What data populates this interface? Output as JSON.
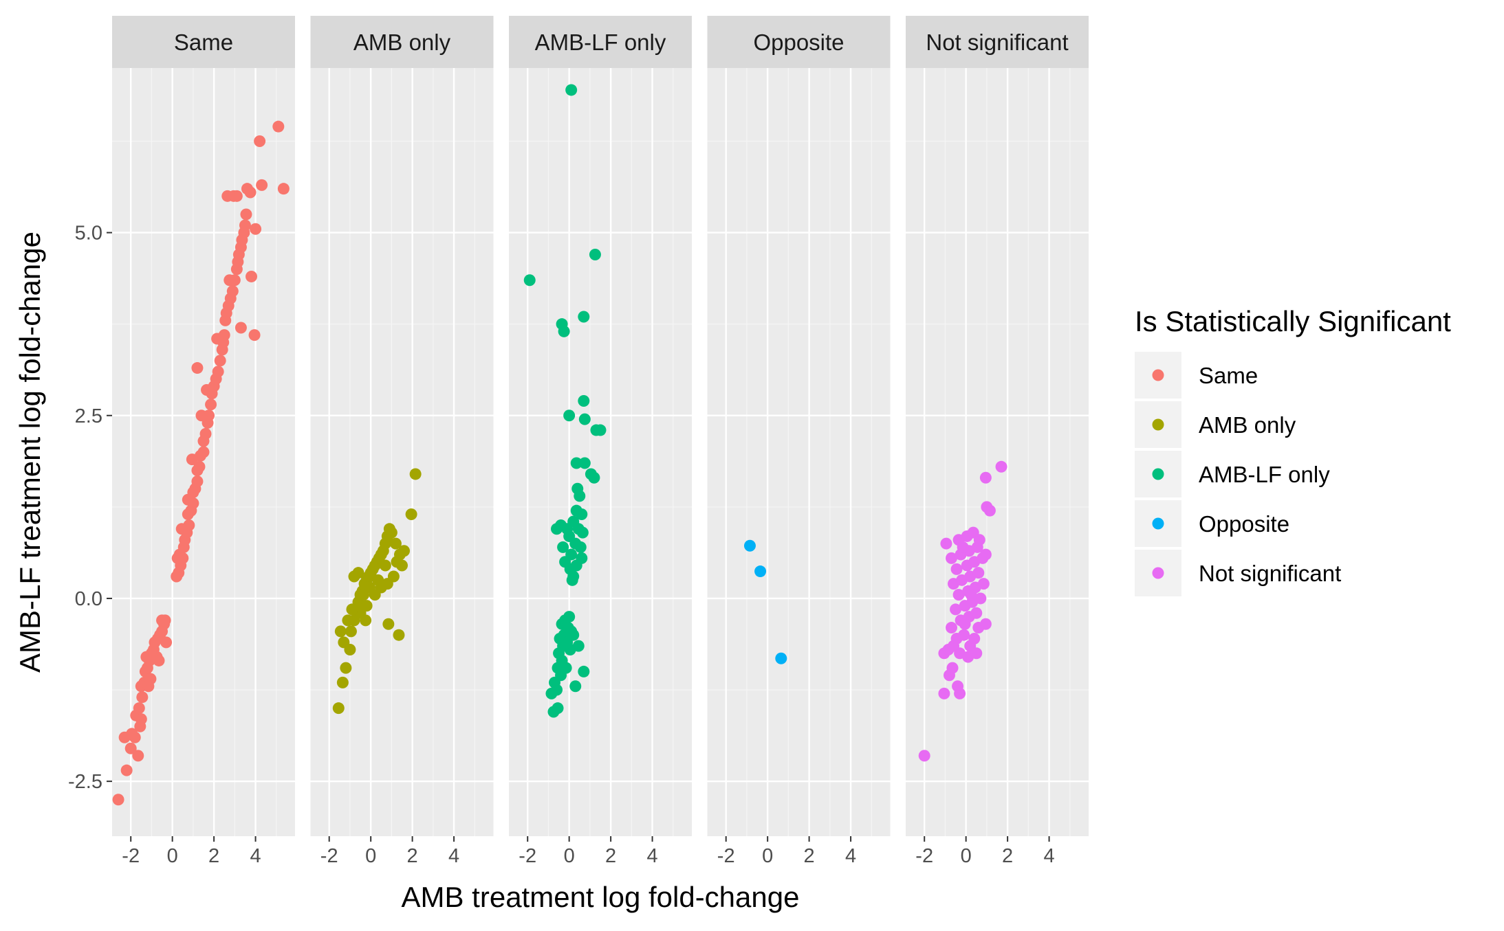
{
  "chart_data": {
    "type": "scatter",
    "facet_by": "Is Statistically Significant",
    "xlabel": "AMB treatment log fold-change",
    "ylabel": "AMB-LF treatment log fold-change",
    "xlim": [
      -2.9,
      5.9
    ],
    "ylim": [
      -3.25,
      7.25
    ],
    "x_ticks": [
      -2,
      0,
      2,
      4
    ],
    "x_tick_labels": [
      "-2",
      "0",
      "2",
      "4"
    ],
    "y_ticks": [
      -2.5,
      0.0,
      2.5,
      5.0
    ],
    "y_tick_labels": [
      "-2.5",
      "0.0",
      "2.5",
      "5.0"
    ],
    "grid": true,
    "legend": {
      "title": "Is Statistically Significant",
      "position": "right",
      "entries": [
        "Same",
        "AMB only",
        "AMB-LF only",
        "Opposite",
        "Not significant"
      ]
    },
    "panels": [
      {
        "name": "Same",
        "color": "#F8766D",
        "points": [
          [
            -2.6,
            -2.75
          ],
          [
            -2.2,
            -2.35
          ],
          [
            -2.3,
            -1.9
          ],
          [
            -2.0,
            -2.05
          ],
          [
            -1.65,
            -2.15
          ],
          [
            -1.95,
            -1.85
          ],
          [
            -1.8,
            -1.9
          ],
          [
            -1.75,
            -1.6
          ],
          [
            -1.5,
            -1.65
          ],
          [
            -1.6,
            -1.5
          ],
          [
            -1.45,
            -1.35
          ],
          [
            -1.5,
            -1.2
          ],
          [
            -1.35,
            -1.15
          ],
          [
            -1.3,
            -1.0
          ],
          [
            -1.2,
            -0.95
          ],
          [
            -1.1,
            -0.85
          ],
          [
            -1.25,
            -0.8
          ],
          [
            -1.0,
            -0.75
          ],
          [
            -0.9,
            -0.7
          ],
          [
            -0.85,
            -0.6
          ],
          [
            -0.7,
            -0.55
          ],
          [
            -0.6,
            -0.5
          ],
          [
            -0.5,
            -0.45
          ],
          [
            -0.4,
            -0.35
          ],
          [
            -0.35,
            -0.3
          ],
          [
            -0.5,
            -0.3
          ],
          [
            -0.3,
            -0.6
          ],
          [
            -0.75,
            -0.8
          ],
          [
            -1.05,
            -1.1
          ],
          [
            -1.55,
            -1.75
          ],
          [
            -1.15,
            -1.2
          ],
          [
            -0.65,
            -0.85
          ],
          [
            0.2,
            0.3
          ],
          [
            0.3,
            0.35
          ],
          [
            0.4,
            0.45
          ],
          [
            0.35,
            0.6
          ],
          [
            0.5,
            0.55
          ],
          [
            0.55,
            0.7
          ],
          [
            0.6,
            0.8
          ],
          [
            0.7,
            0.9
          ],
          [
            0.8,
            1.0
          ],
          [
            0.75,
            1.15
          ],
          [
            0.9,
            1.2
          ],
          [
            1.0,
            1.3
          ],
          [
            1.0,
            1.45
          ],
          [
            1.1,
            1.5
          ],
          [
            1.2,
            1.6
          ],
          [
            1.2,
            1.75
          ],
          [
            1.3,
            1.8
          ],
          [
            1.35,
            1.95
          ],
          [
            1.5,
            2.0
          ],
          [
            1.5,
            2.15
          ],
          [
            1.6,
            2.25
          ],
          [
            1.7,
            2.4
          ],
          [
            1.75,
            2.5
          ],
          [
            1.4,
            2.5
          ],
          [
            1.85,
            2.65
          ],
          [
            1.9,
            2.8
          ],
          [
            2.0,
            2.9
          ],
          [
            2.1,
            3.0
          ],
          [
            2.2,
            3.1
          ],
          [
            2.3,
            3.25
          ],
          [
            2.4,
            3.4
          ],
          [
            2.45,
            3.5
          ],
          [
            2.5,
            3.6
          ],
          [
            2.55,
            3.8
          ],
          [
            2.6,
            3.9
          ],
          [
            2.7,
            4.0
          ],
          [
            2.8,
            4.1
          ],
          [
            2.9,
            4.2
          ],
          [
            3.0,
            4.35
          ],
          [
            3.1,
            4.5
          ],
          [
            3.15,
            4.6
          ],
          [
            3.2,
            4.7
          ],
          [
            3.3,
            4.8
          ],
          [
            3.35,
            4.9
          ],
          [
            3.45,
            5.0
          ],
          [
            3.5,
            5.1
          ],
          [
            3.55,
            5.25
          ],
          [
            4.0,
            5.05
          ],
          [
            3.1,
            5.5
          ],
          [
            2.65,
            5.5
          ],
          [
            2.95,
            5.5
          ],
          [
            3.6,
            5.6
          ],
          [
            3.75,
            5.55
          ],
          [
            4.3,
            5.65
          ],
          [
            5.35,
            5.6
          ],
          [
            4.2,
            6.25
          ],
          [
            5.1,
            6.45
          ],
          [
            3.95,
            3.6
          ],
          [
            3.3,
            3.7
          ],
          [
            3.8,
            4.4
          ],
          [
            1.2,
            3.15
          ],
          [
            0.95,
            1.9
          ],
          [
            0.75,
            1.35
          ],
          [
            0.25,
            0.55
          ],
          [
            0.45,
            0.95
          ],
          [
            1.65,
            2.85
          ],
          [
            2.15,
            3.55
          ],
          [
            2.75,
            4.35
          ]
        ]
      },
      {
        "name": "AMB only",
        "color": "#A3A500",
        "points": [
          [
            -1.55,
            -1.5
          ],
          [
            -1.35,
            -1.15
          ],
          [
            -1.2,
            -0.95
          ],
          [
            -1.3,
            -0.6
          ],
          [
            -1.45,
            -0.45
          ],
          [
            -1.0,
            -0.7
          ],
          [
            -0.95,
            -0.45
          ],
          [
            -0.8,
            -0.3
          ],
          [
            -0.7,
            -0.15
          ],
          [
            -0.6,
            -0.05
          ],
          [
            -0.5,
            0.05
          ],
          [
            -0.4,
            0.1
          ],
          [
            -0.3,
            0.2
          ],
          [
            -0.2,
            0.25
          ],
          [
            -0.1,
            0.3
          ],
          [
            0.0,
            0.35
          ],
          [
            0.1,
            0.4
          ],
          [
            0.2,
            0.45
          ],
          [
            0.3,
            0.5
          ],
          [
            0.4,
            0.55
          ],
          [
            0.5,
            0.6
          ],
          [
            0.6,
            0.65
          ],
          [
            0.7,
            0.75
          ],
          [
            0.8,
            0.85
          ],
          [
            0.9,
            0.95
          ],
          [
            1.0,
            0.9
          ],
          [
            1.2,
            0.75
          ],
          [
            1.4,
            0.6
          ],
          [
            1.5,
            0.45
          ],
          [
            1.1,
            0.3
          ],
          [
            0.8,
            0.2
          ],
          [
            0.5,
            0.15
          ],
          [
            0.2,
            0.05
          ],
          [
            -0.2,
            -0.1
          ],
          [
            -0.5,
            -0.2
          ],
          [
            -0.8,
            0.3
          ],
          [
            -0.6,
            0.35
          ],
          [
            -0.35,
            0.05
          ],
          [
            -0.9,
            -0.15
          ],
          [
            -1.1,
            -0.3
          ],
          [
            0.85,
            -0.35
          ],
          [
            1.35,
            -0.5
          ],
          [
            1.95,
            1.15
          ],
          [
            2.15,
            1.7
          ],
          [
            1.6,
            0.65
          ],
          [
            1.25,
            0.5
          ],
          [
            0.7,
            0.45
          ],
          [
            0.35,
            0.25
          ],
          [
            -0.05,
            0.15
          ],
          [
            -0.25,
            -0.3
          ]
        ]
      },
      {
        "name": "AMB-LF only",
        "color": "#00BF7D",
        "points": [
          [
            0.1,
            6.95
          ],
          [
            1.25,
            4.7
          ],
          [
            -1.9,
            4.35
          ],
          [
            0.7,
            3.85
          ],
          [
            -0.35,
            3.75
          ],
          [
            -0.25,
            3.65
          ],
          [
            0.7,
            2.7
          ],
          [
            0.0,
            2.5
          ],
          [
            0.75,
            2.45
          ],
          [
            1.3,
            2.3
          ],
          [
            1.5,
            2.3
          ],
          [
            0.35,
            1.85
          ],
          [
            0.75,
            1.85
          ],
          [
            1.05,
            1.7
          ],
          [
            1.2,
            1.65
          ],
          [
            0.4,
            1.5
          ],
          [
            0.5,
            1.4
          ],
          [
            0.35,
            1.2
          ],
          [
            0.6,
            1.15
          ],
          [
            0.2,
            1.05
          ],
          [
            -0.4,
            1.0
          ],
          [
            -0.1,
            0.95
          ],
          [
            0.45,
            0.95
          ],
          [
            0.65,
            0.9
          ],
          [
            -0.6,
            0.95
          ],
          [
            0.0,
            0.85
          ],
          [
            0.3,
            0.75
          ],
          [
            -0.3,
            0.7
          ],
          [
            0.55,
            0.7
          ],
          [
            0.1,
            0.6
          ],
          [
            -0.2,
            0.5
          ],
          [
            0.35,
            0.45
          ],
          [
            0.05,
            0.4
          ],
          [
            0.2,
            0.3
          ],
          [
            0.15,
            0.25
          ],
          [
            0.6,
            0.55
          ],
          [
            -0.35,
            -0.35
          ],
          [
            -0.2,
            -0.3
          ],
          [
            -0.05,
            -0.4
          ],
          [
            0.1,
            -0.45
          ],
          [
            0.2,
            -0.5
          ],
          [
            -0.45,
            -0.55
          ],
          [
            -0.3,
            -0.65
          ],
          [
            -0.5,
            -0.75
          ],
          [
            -0.35,
            -0.85
          ],
          [
            -0.55,
            -0.95
          ],
          [
            -0.4,
            -1.05
          ],
          [
            -0.7,
            -1.15
          ],
          [
            -0.6,
            -1.25
          ],
          [
            -0.85,
            -1.3
          ],
          [
            -0.75,
            -1.55
          ],
          [
            -0.55,
            -1.5
          ],
          [
            0.3,
            -1.2
          ],
          [
            0.7,
            -1.0
          ],
          [
            0.45,
            -0.65
          ],
          [
            0.05,
            -0.7
          ],
          [
            -0.15,
            -0.95
          ],
          [
            -0.25,
            -0.5
          ],
          [
            0.0,
            -0.25
          ],
          [
            -0.1,
            -0.6
          ]
        ]
      },
      {
        "name": "Opposite",
        "color": "#00B0F6",
        "points": [
          [
            -0.85,
            0.72
          ],
          [
            -0.35,
            0.37
          ],
          [
            0.65,
            -0.82
          ]
        ]
      },
      {
        "name": "Not significant",
        "color": "#E76BF3",
        "points": [
          [
            -2.0,
            -2.15
          ],
          [
            -1.05,
            -1.3
          ],
          [
            -0.3,
            -1.3
          ],
          [
            -0.4,
            -1.2
          ],
          [
            -0.8,
            -1.05
          ],
          [
            -0.65,
            -0.95
          ],
          [
            -1.05,
            -0.75
          ],
          [
            -0.85,
            -0.7
          ],
          [
            -0.6,
            -0.65
          ],
          [
            -0.3,
            -0.75
          ],
          [
            0.1,
            -0.8
          ],
          [
            0.2,
            -0.65
          ],
          [
            -0.45,
            -0.55
          ],
          [
            -0.1,
            -0.5
          ],
          [
            0.4,
            -0.55
          ],
          [
            0.6,
            -0.4
          ],
          [
            0.95,
            -0.35
          ],
          [
            -0.7,
            -0.4
          ],
          [
            -0.25,
            -0.3
          ],
          [
            0.15,
            -0.25
          ],
          [
            0.5,
            -0.2
          ],
          [
            -0.5,
            -0.15
          ],
          [
            -0.05,
            -0.1
          ],
          [
            0.3,
            -0.05
          ],
          [
            0.7,
            0.0
          ],
          [
            -0.35,
            0.05
          ],
          [
            0.1,
            0.1
          ],
          [
            0.45,
            0.15
          ],
          [
            0.85,
            0.2
          ],
          [
            -0.6,
            0.2
          ],
          [
            -0.2,
            0.25
          ],
          [
            0.2,
            0.3
          ],
          [
            0.6,
            0.35
          ],
          [
            -0.45,
            0.4
          ],
          [
            0.05,
            0.45
          ],
          [
            0.4,
            0.5
          ],
          [
            0.8,
            0.55
          ],
          [
            -0.7,
            0.55
          ],
          [
            -0.25,
            0.6
          ],
          [
            0.15,
            0.65
          ],
          [
            0.55,
            0.7
          ],
          [
            -0.95,
            0.75
          ],
          [
            -0.35,
            0.8
          ],
          [
            0.05,
            0.85
          ],
          [
            0.35,
            0.9
          ],
          [
            0.65,
            0.8
          ],
          [
            -0.15,
            0.7
          ],
          [
            0.95,
            0.6
          ],
          [
            1.0,
            1.25
          ],
          [
            1.15,
            1.2
          ],
          [
            0.95,
            1.65
          ],
          [
            1.7,
            1.8
          ],
          [
            0.25,
            0.05
          ],
          [
            -0.05,
            -0.35
          ],
          [
            0.5,
            -0.75
          ]
        ]
      }
    ]
  }
}
